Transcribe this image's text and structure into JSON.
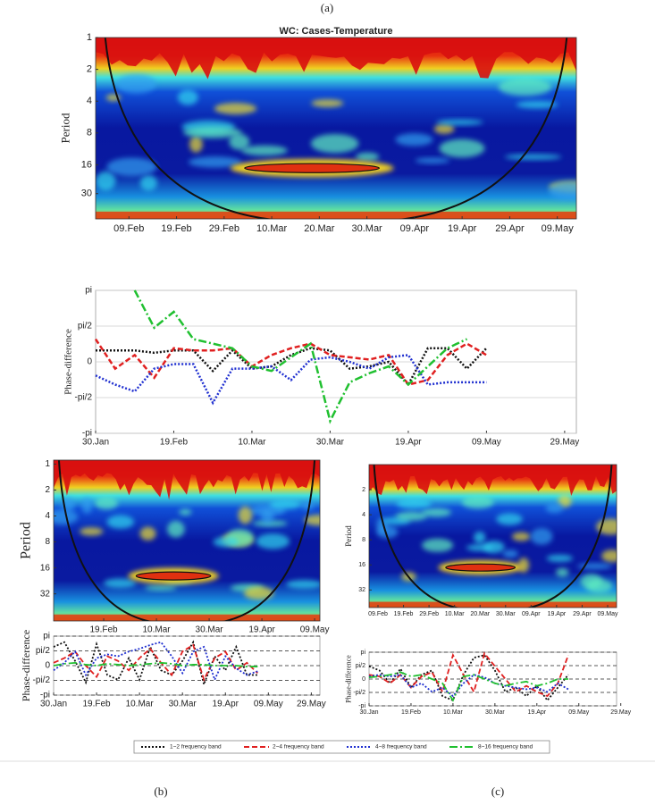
{
  "panel_labels": [
    "(a)",
    "(b)",
    "(c)"
  ],
  "chart_data": [
    {
      "type": "heatmap",
      "title": "WC: Cases-Temperature",
      "y_label": "Period",
      "log_y": true,
      "xlim": [
        3,
        104
      ],
      "ylim": [
        1,
        52
      ],
      "xticks": [
        {
          "value": 10,
          "label": "09.Feb"
        },
        {
          "value": 20,
          "label": "19.Feb"
        },
        {
          "value": 30,
          "label": "29.Feb"
        },
        {
          "value": 40,
          "label": "10.Mar"
        },
        {
          "value": 50,
          "label": "20.Mar"
        },
        {
          "value": 60,
          "label": "30.Mar"
        },
        {
          "value": 70,
          "label": "09.Apr"
        },
        {
          "value": 80,
          "label": "19.Apr"
        },
        {
          "value": 90,
          "label": "29.Apr"
        },
        {
          "value": 100,
          "label": "09.May"
        }
      ],
      "yticks": [
        1,
        2,
        4,
        8,
        16,
        30
      ]
    },
    {
      "type": "line",
      "y_label": "Phase-difference",
      "grid": true,
      "x": [
        0,
        5,
        10,
        15,
        20,
        25,
        30,
        35,
        40,
        45,
        50,
        55,
        60,
        65,
        70,
        75,
        80,
        85,
        90,
        95,
        100
      ],
      "xlim": [
        0,
        123
      ],
      "ylim": [
        -3.1416,
        3.1416
      ],
      "xticks": [
        {
          "value": 0,
          "label": "30.Jan"
        },
        {
          "value": 20,
          "label": "19.Feb"
        },
        {
          "value": 40,
          "label": "10.Mar"
        },
        {
          "value": 60,
          "label": "30.Mar"
        },
        {
          "value": 80,
          "label": "19.Apr"
        },
        {
          "value": 100,
          "label": "09.May"
        },
        {
          "value": 120,
          "label": "29.May"
        }
      ],
      "yticks": [
        {
          "value": 3.1416,
          "label": "pi"
        },
        {
          "value": 1.5708,
          "label": "pi/2"
        },
        0,
        {
          "value": -1.5708,
          "label": "-pi/2"
        },
        {
          "value": -3.1416,
          "label": "-pi"
        }
      ],
      "series": [
        {
          "color": "#111111",
          "values": [
            0.5,
            0.5,
            0.5,
            0.4,
            0.5,
            0.5,
            -0.4,
            0.5,
            -0.3,
            -0.2,
            0.3,
            0.6,
            0.5,
            -0.3,
            -0.2,
            0,
            -1.0,
            0.6,
            0.6,
            -0.3,
            0.6
          ]
        },
        {
          "color": "#e02020",
          "values": [
            1.0,
            -0.3,
            0.3,
            -0.7,
            0.6,
            0.5,
            0.5,
            0.6,
            -0.2,
            0.3,
            0.6,
            0.8,
            0.3,
            0.2,
            0.1,
            0.3,
            -1.0,
            -0.8,
            0.3,
            0.8,
            0.3
          ]
        },
        {
          "color": "#2030d0",
          "values": [
            -0.6,
            -1.0,
            -1.3,
            -0.3,
            -0.1,
            -0.1,
            -1.8,
            -0.3,
            -0.3,
            -0.2,
            -0.8,
            0.1,
            0.2,
            0.0,
            -0.3,
            0.2,
            0.3,
            -1.0,
            -0.9,
            -0.9,
            -0.9
          ]
        },
        {
          "color": "#20c030",
          "values": [
            null,
            null,
            3.1416,
            1.5,
            2.2,
            1.0,
            0.8,
            0.6,
            -0.2,
            -0.4,
            0.2,
            0.8,
            -2.6,
            -0.9,
            -0.5,
            -0.2,
            -1.0,
            -0.2,
            0.6,
            1.0,
            null
          ]
        }
      ]
    },
    {
      "type": "heatmap",
      "y_label": "Period",
      "log_y": true,
      "xlim": [
        1,
        102
      ],
      "ylim": [
        0.9,
        66
      ],
      "xticks": [
        {
          "value": 20,
          "label": "19.Feb"
        },
        {
          "value": 40,
          "label": "10.Mar"
        },
        {
          "value": 60,
          "label": "30.Mar"
        },
        {
          "value": 80,
          "label": "19.Apr"
        },
        {
          "value": 100,
          "label": "09.May"
        }
      ],
      "yticks": [
        1,
        2,
        4,
        8,
        16,
        32
      ]
    },
    {
      "type": "line",
      "y_label": "Phase-difference",
      "grid": true,
      "x": [
        0,
        5,
        10,
        15,
        20,
        25,
        30,
        35,
        40,
        45,
        50,
        55,
        60,
        65,
        70,
        75,
        80,
        85,
        90,
        95,
        100
      ],
      "xlim": [
        0,
        124
      ],
      "ylim": [
        -3.1416,
        3.1416
      ],
      "xticks": [
        {
          "value": 0,
          "label": "30.Jan"
        },
        {
          "value": 20,
          "label": "19.Feb"
        },
        {
          "value": 40,
          "label": "10.Mar"
        },
        {
          "value": 60,
          "label": "30.Mar"
        },
        {
          "value": 80,
          "label": "19.Apr"
        },
        {
          "value": 100,
          "label": "09.May"
        },
        {
          "value": 120,
          "label": "29.May"
        }
      ],
      "yticks": [
        {
          "value": 3.1416,
          "label": "pi"
        },
        {
          "value": 1.5708,
          "label": "pi/2"
        },
        0,
        {
          "value": -1.5708,
          "label": "-pi/2"
        },
        {
          "value": -3.1416,
          "label": "-pi"
        }
      ],
      "series": [
        {
          "name": "1~2 frequency band",
          "color": "#111111",
          "values": [
            2.0,
            2.5,
            0.5,
            -1.8,
            2.3,
            -1.0,
            -1.5,
            0.8,
            -1.5,
            2.0,
            -0.5,
            -1.0,
            0.5,
            2.5,
            -2.0,
            1.0,
            -0.5,
            2.0,
            -1.0,
            -1.0,
            null
          ]
        },
        {
          "name": "2~4 frequency band",
          "color": "#e02020",
          "values": [
            0.3,
            0.8,
            1.5,
            0.0,
            -1.2,
            1.0,
            0.5,
            -0.5,
            0.8,
            1.8,
            0.3,
            -1.0,
            1.5,
            2.2,
            -1.5,
            0.8,
            1.5,
            -0.5,
            0.3,
            -0.8,
            null
          ]
        },
        {
          "name": "4~8 frequency band",
          "color": "#2030d0",
          "values": [
            -0.5,
            0.3,
            1.5,
            -1.0,
            0.8,
            1.2,
            1.0,
            1.5,
            1.8,
            2.2,
            2.5,
            1.0,
            -0.8,
            1.5,
            2.0,
            -1.5,
            1.0,
            -0.3,
            -1.0,
            -0.6,
            null
          ]
        },
        {
          "name": "8~16 frequency band",
          "color": "#20c030",
          "values": [
            0.0,
            0.2,
            0.3,
            0.1,
            0.0,
            0.2,
            0.1,
            0.0,
            0.1,
            0.2,
            0.3,
            0.2,
            0.0,
            0.1,
            0.1,
            0.0,
            0.0,
            0.0,
            -0.1,
            -0.1,
            null
          ]
        }
      ]
    },
    {
      "type": "heatmap",
      "y_label": "Period",
      "log_y": true,
      "xlim": [
        6.5,
        103.5
      ],
      "ylim": [
        1,
        52
      ],
      "xticks": [
        {
          "value": 10,
          "label": "09.Feb"
        },
        {
          "value": 20,
          "label": "19.Feb"
        },
        {
          "value": 30,
          "label": "29.Feb"
        },
        {
          "value": 40,
          "label": "10.Mar"
        },
        {
          "value": 50,
          "label": "20.Mar"
        },
        {
          "value": 60,
          "label": "30.Mar"
        },
        {
          "value": 70,
          "label": "09.Apr"
        },
        {
          "value": 80,
          "label": "19.Apr"
        },
        {
          "value": 90,
          "label": "29.Apr"
        },
        {
          "value": 100,
          "label": "09.May"
        }
      ],
      "yticks": [
        2,
        4,
        8,
        16,
        32
      ]
    },
    {
      "type": "line",
      "y_label": "Phase-difference",
      "grid": true,
      "x": [
        0,
        5,
        10,
        15,
        20,
        25,
        30,
        35,
        40,
        45,
        50,
        55,
        60,
        65,
        70,
        75,
        80,
        85,
        90,
        95,
        100
      ],
      "xlim": [
        0,
        118
      ],
      "ylim": [
        -3.1416,
        3.1416
      ],
      "xticks": [
        {
          "value": 0,
          "label": "30.Jan"
        },
        {
          "value": 20,
          "label": "19.Feb"
        },
        {
          "value": 40,
          "label": "10.Mar"
        },
        {
          "value": 60,
          "label": "30.Mar"
        },
        {
          "value": 80,
          "label": "19.Apr"
        },
        {
          "value": 100,
          "label": "09.May"
        },
        {
          "value": 120,
          "label": "29.May"
        }
      ],
      "yticks": [
        {
          "value": 3.1416,
          "label": "pi"
        },
        {
          "value": 1.5708,
          "label": "pi/2"
        },
        0,
        {
          "value": -1.5708,
          "label": "-pi/2"
        },
        {
          "value": -3.1416,
          "label": "-pi"
        }
      ],
      "series": [
        {
          "color": "#111111",
          "values": [
            1.5,
            1.0,
            -0.5,
            1.2,
            -1.0,
            0.5,
            1.0,
            -2.0,
            -2.5,
            0.5,
            2.5,
            2.8,
            1.0,
            -1.5,
            -1.0,
            -2.0,
            -0.8,
            -2.5,
            -1.0,
            0.5,
            null
          ]
        },
        {
          "color": "#e02020",
          "values": [
            0.5,
            0.3,
            -0.5,
            0.5,
            -1.0,
            0.3,
            0.8,
            -1.5,
            2.8,
            0.5,
            -1.5,
            3.0,
            1.5,
            0.0,
            -1.5,
            -0.8,
            -1.5,
            -2.0,
            -0.5,
            2.8,
            null
          ]
        },
        {
          "color": "#2030d0",
          "values": [
            0.3,
            0.5,
            0.3,
            0.5,
            -1.0,
            -0.5,
            -1.5,
            -1.0,
            -2.0,
            -0.5,
            0.5,
            0.2,
            -0.5,
            -0.8,
            -1.0,
            -1.2,
            -1.0,
            -1.5,
            -0.5,
            -1.2,
            null
          ]
        },
        {
          "color": "#20c030",
          "values": [
            0.2,
            0.3,
            0.5,
            0.8,
            0.3,
            0.5,
            0.0,
            -0.5,
            -2.5,
            0.3,
            0.5,
            0.0,
            -0.5,
            -0.8,
            -0.5,
            -0.3,
            -0.8,
            -0.5,
            0.0,
            0.0,
            null
          ]
        }
      ]
    }
  ]
}
